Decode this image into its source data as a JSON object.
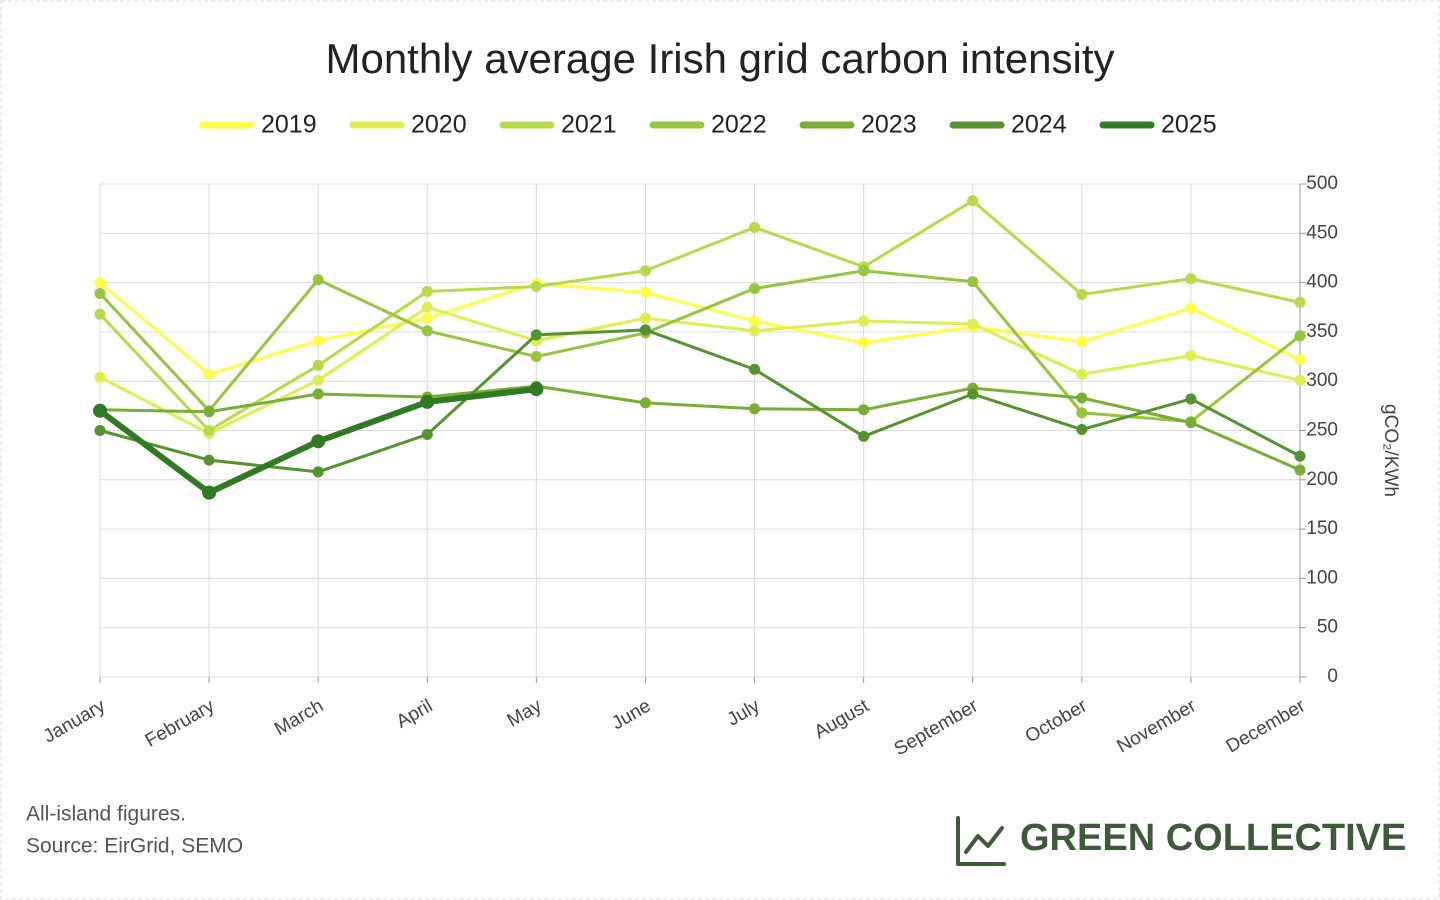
{
  "chart_data": {
    "type": "line",
    "title": "Monthly average Irish grid carbon intensity",
    "y_label": "gCO₂/KWh",
    "categories": [
      "January",
      "February",
      "March",
      "April",
      "May",
      "June",
      "July",
      "August",
      "September",
      "October",
      "November",
      "December"
    ],
    "series": [
      {
        "name": "2019",
        "color": "#ffff4a",
        "values": [
          400,
          307,
          341,
          364,
          399,
          390,
          361,
          339,
          355,
          340,
          374,
          322
        ]
      },
      {
        "name": "2020",
        "color": "#deee52",
        "values": [
          304,
          247,
          301,
          375,
          341,
          364,
          351,
          361,
          358,
          307,
          326,
          301
        ]
      },
      {
        "name": "2021",
        "color": "#b7d94a",
        "values": [
          368,
          250,
          316,
          391,
          396,
          412,
          456,
          416,
          483,
          388,
          404,
          380
        ]
      },
      {
        "name": "2022",
        "color": "#98c43f",
        "values": [
          389,
          270,
          403,
          351,
          325,
          349,
          394,
          412,
          401,
          268,
          259,
          346
        ]
      },
      {
        "name": "2023",
        "color": "#79ad36",
        "values": [
          271,
          269,
          287,
          284,
          295,
          278,
          272,
          271,
          293,
          283,
          258,
          210
        ]
      },
      {
        "name": "2024",
        "color": "#56922e",
        "values": [
          250,
          220,
          208,
          246,
          347,
          352,
          312,
          244,
          287,
          251,
          282,
          224
        ]
      },
      {
        "name": "2025",
        "color": "#2f7a22",
        "values": [
          270,
          187,
          239,
          279,
          292,
          null,
          null,
          null,
          null,
          null,
          null,
          null
        ]
      }
    ],
    "ylim": [
      0,
      500
    ],
    "yticks": [
      0,
      50,
      100,
      150,
      200,
      250,
      300,
      350,
      400,
      450,
      500
    ],
    "grid": true,
    "annotations": [
      "All-island figures.",
      "Source: EirGrid, SEMO"
    ],
    "brand": "GREEN COLLECTIVE"
  }
}
